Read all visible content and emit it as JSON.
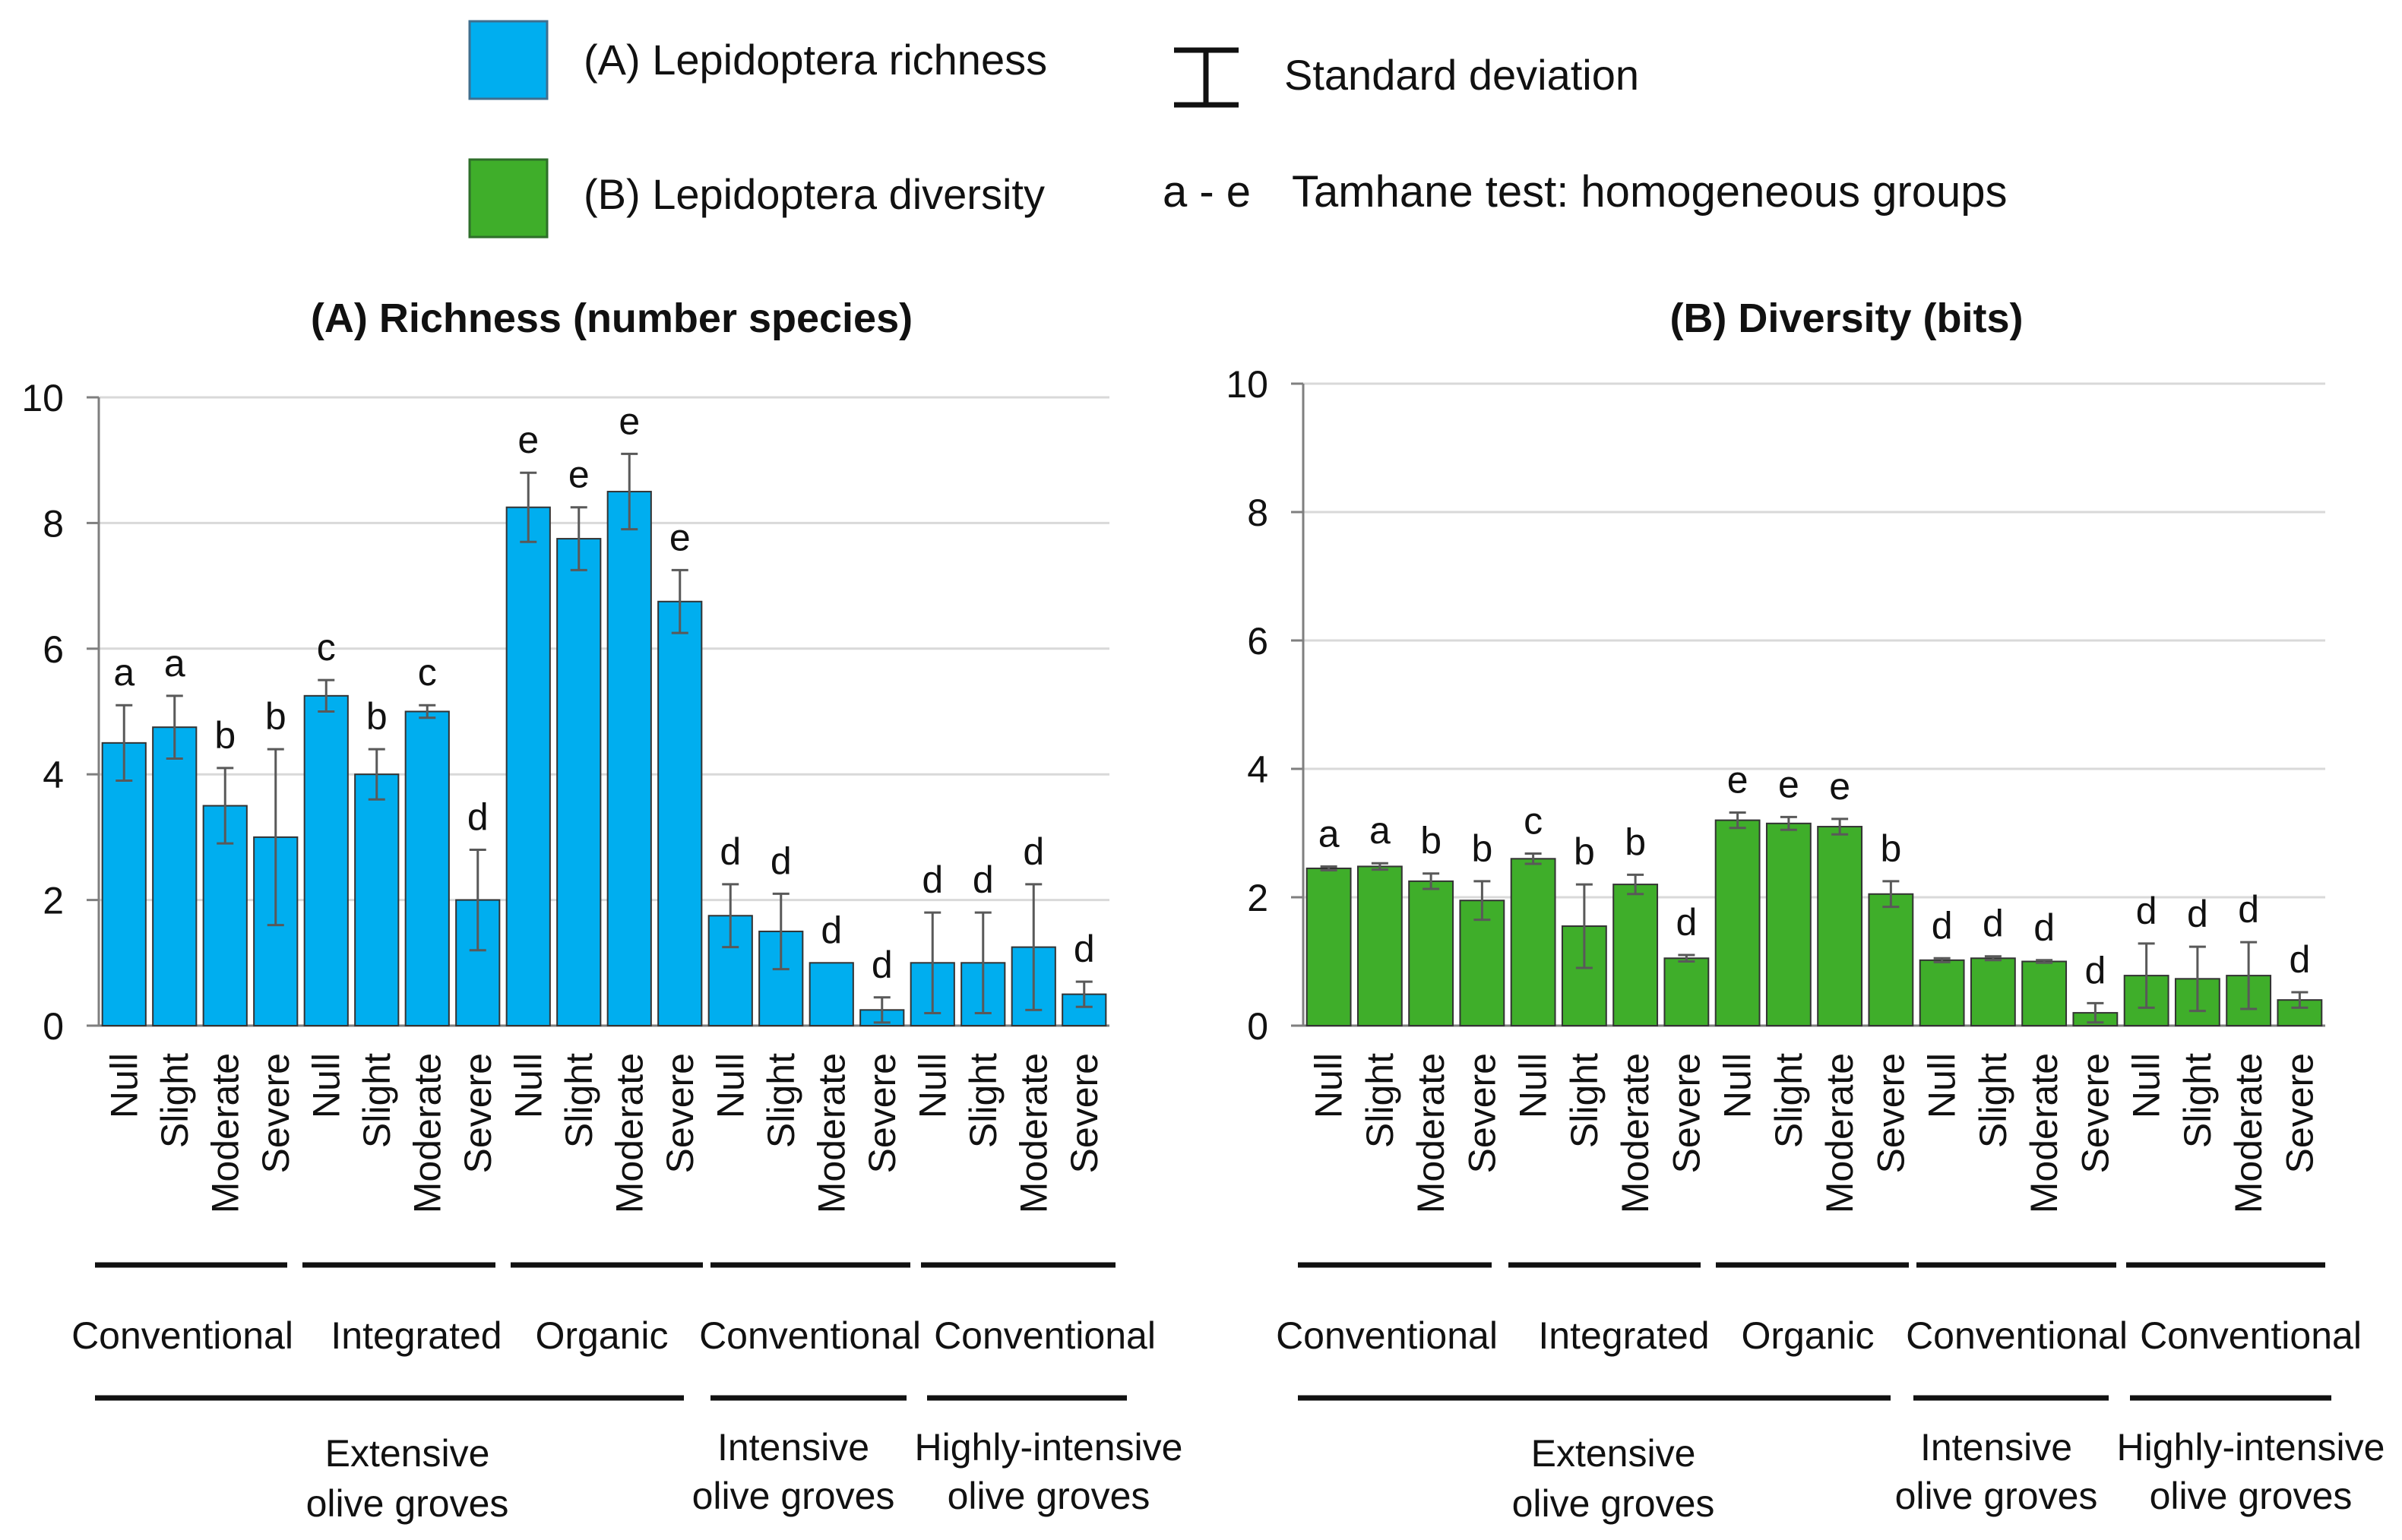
{
  "colors": {
    "richness_fill": "#00AEEF",
    "diversity_fill": "#3FAE2A",
    "gridline": "#D9D9D9",
    "axis": "#7F7F7F",
    "error_bar": "#595959",
    "text": "#111111"
  },
  "legend": {
    "richness_label": "(A) Lepidoptera richness",
    "diversity_label": "(B) Lepidoptera diversity",
    "sd_label": "Standard deviation",
    "groups_symbol": "a - e",
    "groups_label": "Tamhane test: homogeneous groups"
  },
  "chart_data": [
    {
      "type": "bar",
      "title": "(A) Richness (number species)",
      "ylim": [
        0,
        10
      ],
      "yticks": [
        "0",
        "2",
        "4",
        "6",
        "8",
        "10"
      ],
      "categories": [
        "Null",
        "Slight",
        "Moderate",
        "Severe",
        "Null",
        "Slight",
        "Moderate",
        "Severe",
        "Null",
        "Slight",
        "Moderate",
        "Severe",
        "Null",
        "Slight",
        "Moderate",
        "Severe",
        "Null",
        "Slight",
        "Moderate",
        "Severe"
      ],
      "values": [
        4.5,
        4.75,
        3.5,
        3.0,
        5.25,
        4.0,
        5.0,
        2.0,
        8.25,
        7.75,
        8.5,
        6.75,
        1.75,
        1.5,
        1.0,
        0.25,
        1.0,
        1.0,
        1.25,
        0.5
      ],
      "sd": [
        0.6,
        0.5,
        0.6,
        1.4,
        0.25,
        0.4,
        0.1,
        0.8,
        0.55,
        0.5,
        0.6,
        0.5,
        0.5,
        0.6,
        0.0,
        0.2,
        0.8,
        0.8,
        1.0,
        0.2
      ],
      "letters": [
        "a",
        "a",
        "b",
        "b",
        "c",
        "b",
        "c",
        "d",
        "e",
        "e",
        "e",
        "e",
        "d",
        "d",
        "d",
        "d",
        "d",
        "d",
        "d",
        "d"
      ],
      "management": [
        "Conventional",
        "Integrated",
        "Organic",
        "Conventional",
        "Conventional"
      ],
      "grove_types": [
        {
          "line1": "Extensive",
          "line2": "olive groves"
        },
        {
          "line1": "Intensive",
          "line2": "olive groves"
        },
        {
          "line1": "Highly-intensive",
          "line2": "olive groves"
        }
      ]
    },
    {
      "type": "bar",
      "title": "(B) Diversity (bits)",
      "ylim": [
        0,
        10
      ],
      "yticks": [
        "0",
        "2",
        "4",
        "6",
        "8",
        "10"
      ],
      "categories": [
        "Null",
        "Slight",
        "Moderate",
        "Severe",
        "Null",
        "Slight",
        "Moderate",
        "Severe",
        "Null",
        "Slight",
        "Moderate",
        "Severe",
        "Null",
        "Slight",
        "Moderate",
        "Severe",
        "Null",
        "Slight",
        "Moderate",
        "Severe"
      ],
      "values": [
        2.45,
        2.48,
        2.25,
        1.95,
        2.6,
        1.55,
        2.2,
        1.05,
        3.2,
        3.15,
        3.1,
        2.05,
        1.02,
        1.05,
        1.0,
        0.2,
        0.78,
        0.73,
        0.78,
        0.4
      ],
      "sd": [
        0.03,
        0.05,
        0.12,
        0.3,
        0.08,
        0.65,
        0.15,
        0.05,
        0.12,
        0.1,
        0.12,
        0.2,
        0.03,
        0.03,
        0.02,
        0.15,
        0.5,
        0.5,
        0.52,
        0.12
      ],
      "letters": [
        "a",
        "a",
        "b",
        "b",
        "c",
        "b",
        "b",
        "d",
        "e",
        "e",
        "e",
        "b",
        "d",
        "d",
        "d",
        "d",
        "d",
        "d",
        "d",
        "d"
      ],
      "management": [
        "Conventional",
        "Integrated",
        "Organic",
        "Conventional",
        "Conventional"
      ],
      "grove_types": [
        {
          "line1": "Extensive",
          "line2": "olive groves"
        },
        {
          "line1": "Intensive",
          "line2": "olive groves"
        },
        {
          "line1": "Highly-intensive",
          "line2": "olive groves"
        }
      ]
    }
  ]
}
